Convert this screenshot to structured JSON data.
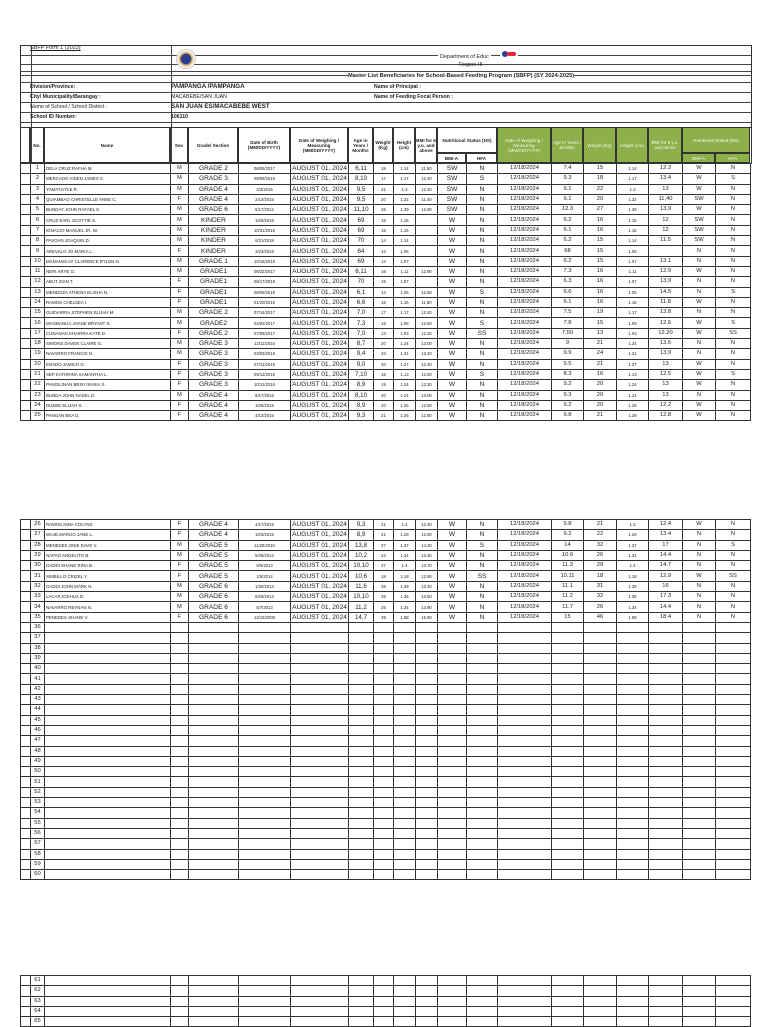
{
  "form_label": "SBFP Form 1 (2023)",
  "department": "Department of Educ",
  "region": "Region III",
  "title": "Master List Beneficiaries for School-Based Feeding Program (SBFP) (SY 2024-2025)",
  "info": {
    "division_label": "Division/Province:",
    "division_value": "PAMPANGA /PAMPANGA",
    "city_label": "City/ Municipality/Barangay :",
    "city_value": "MACABEBE/SAN JUAN",
    "school_label": "Name of School / School District :",
    "school_value": "SAN JUAN ES/MACABEBE WEST",
    "id_label": "School  ID Number:",
    "id_value": "106110",
    "principal_label": "Name of Principal :",
    "focal_label": "Name of Feeding Focal Person :"
  },
  "columns": {
    "no": "No.",
    "name": "Name",
    "sex": "Sex",
    "grade": "Grade/ Section",
    "dob": "Date of Birth (MM/DD/YYYY)",
    "weigh_date": "Date of Weighing / Measuring (MM/DD/YYYY)",
    "age": "Age in Years / Months",
    "weight": "Weight (Kg)",
    "height": "Height (cm)",
    "bmi": "BMI for 6 y.o. and above",
    "ns": "Nutritional Status (NS)",
    "bmia": "BMI-A",
    "hfa": "HFA",
    "g_date": "Date of Weighing / Measuring (MM/DD/YYYY)",
    "g_age": "Age in Years / Months",
    "g_weight": "Weight (Kg)",
    "g_height": "Height (cm)",
    "g_bmi": "BMI for 6 y.o. and above",
    "g_ns": "Nutritional Status (NS)",
    "g_bmia": "BMI-A",
    "g_hfa": "HFA"
  },
  "colors": {
    "accent_green": "#8db04a",
    "grid": "#333333"
  },
  "icons": {
    "deped_seal": "deped-seal-icon",
    "program_logo": "sbfp-logo-icon"
  },
  "rows": [
    [
      "1",
      "DELA CRUZ RAFHA M.",
      "M",
      "GRADE 2",
      "08/05/2017",
      "AUGUST 01, 2024",
      "6,11",
      "15",
      "1.14",
      "11.50",
      "SW",
      "N",
      "12/18/2024",
      "7.4",
      "15",
      "1.14",
      "12.3",
      "W",
      "N"
    ],
    [
      "2",
      "MERCADO AIDEN JAMES  S.",
      "M",
      "GRADE 3",
      "09/09/2015",
      "AUGUST 01, 2024",
      "8,10",
      "17",
      "1.17",
      "12.40",
      "SW",
      "S",
      "12/18/2024",
      "9.3",
      "18",
      "1.17",
      "13.4",
      "W",
      "S"
    ],
    [
      "3",
      "YAMAT,KYLE R.",
      "M",
      "GRADE 4",
      "2/3/2015",
      "AUGUST 01, 2024",
      "9,5",
      "21",
      "1.3",
      "12.40",
      "SW",
      "N",
      "12/18/2024",
      "9.1",
      "22",
      "1.3",
      "13",
      "W",
      "N"
    ],
    [
      "4",
      "QUIAMBAO  CHRISTELLE ANNE C.",
      "F",
      "GRADE 4",
      "2/10/2015",
      "AUGUST 01, 2024",
      "9,5",
      "20",
      "1.32",
      "11.40",
      "SW",
      "N",
      "12/18/2024",
      "9.1",
      "20",
      "1.32",
      "11,40",
      "SW",
      "N"
    ],
    [
      "5",
      "BUNDAY JOHN RAFAEL S.",
      "M",
      "GRADE 6",
      "6/17/2012",
      "AUGUST 01, 2024",
      "11,10",
      "25",
      "1.39",
      "12.90",
      "SW",
      "N",
      "12/18/2024",
      "12.3",
      "27",
      "1.39",
      "13.9",
      "W",
      "N"
    ],
    [
      "6",
      "CRUZ EARL SCOTTIE S.",
      "M",
      "KINDER",
      "10/6/2018",
      "AUGUST 01, 2024",
      "69",
      "15",
      "1.15",
      "",
      "W",
      "N",
      "12/18/2024",
      "6.2",
      "16",
      "1.15",
      "12",
      "SW",
      "N"
    ],
    [
      "7",
      "IGNACIO MANUEL JR. W.",
      "M",
      "KINDER",
      "10/31/2018",
      "AUGUST 01, 2024",
      "69",
      "15",
      "1.15",
      "",
      "W",
      "N",
      "12/18/2024",
      "6.1",
      "16",
      "1.15",
      "12",
      "SW",
      "N"
    ],
    [
      "8",
      "PAVOAN JOAQUIN D.",
      "M",
      "KINDER",
      "6/21/2018",
      "AUGUST 01, 2024",
      "70",
      "14",
      "1.14",
      "",
      "W",
      "N",
      "12/18/2024",
      "6.2",
      "15",
      "1.14",
      "11.5",
      "SW",
      "N"
    ],
    [
      "9",
      "AREVALO JO MARIA  L.",
      "F",
      "KINDER",
      "3/23/2019",
      "AUGUST 01, 2024",
      "64",
      "14",
      "1.06",
      "",
      "W",
      "N",
      "12/18/2024",
      "68",
      "15",
      "1.06",
      "",
      "N",
      "N"
    ],
    [
      "10",
      "MANANSCAY CLARENCE RYLEN N.",
      "M",
      "GRADE 1",
      "10/16/2018",
      "AUGUST 01, 2024",
      "69",
      "14",
      "1.07",
      "",
      "W",
      "N",
      "12/18/2024",
      "6.2",
      "15",
      "1.07",
      "13.1",
      "N",
      "N"
    ],
    [
      "11",
      "NERI ARYE O.",
      "M",
      "GRADE1",
      "08/22/2017",
      "AUGUST 01, 2024",
      "6,11",
      "16",
      "1.11",
      "12.90",
      "W",
      "N",
      "12/18/2024",
      "7.3",
      "16",
      "1.11",
      "12.9",
      "W",
      "N"
    ],
    [
      "12",
      "ABUT ZIAN T.",
      "F",
      "GRADE1",
      "09/17/2018",
      "AUGUST 01, 2024",
      "70",
      "15",
      "1.07",
      "",
      "W",
      "N",
      "12/18/2024",
      "6.3",
      "16",
      "1.07",
      "13.9",
      "N",
      "N"
    ],
    [
      "13",
      "MENDOZA ATHENA ELISHA N.",
      "F",
      "GRADE1",
      "06/09/2018",
      "AUGUST 01, 2024",
      "6,1",
      "14",
      "1.05",
      "12.60",
      "W",
      "S",
      "12/18/2024",
      "6.6",
      "16",
      "1.05",
      "14.5",
      "N",
      "S"
    ],
    [
      "14",
      "RAMOS CHELSEA I.",
      "F",
      "GRADE1",
      "01/20/2018",
      "AUGUST 01, 2024",
      "6,6",
      "16",
      "1.16",
      "11.80",
      "W",
      "N",
      "12/18/2024",
      "6.1",
      "16",
      "1.16",
      "11.8",
      "W",
      "N"
    ],
    [
      "15",
      "GUEVARRA,STEPHEN ELIJAH  M.",
      "M",
      "GRADE 2",
      "07/14/2017",
      "AUGUST 01, 2024",
      "7,0",
      "17",
      "1.17",
      "12.40",
      "W",
      "N",
      "12/18/2024",
      "7.5",
      "19",
      "1.17",
      "13.8",
      "N",
      "N"
    ],
    [
      "16",
      "MAGBANUA,JHANE BRYANT S.",
      "M",
      "GRADE2",
      "04/02/2017",
      "AUGUST 01, 2024",
      "7,3",
      "15",
      "1.09",
      "12.60",
      "W",
      "S",
      "12/18/2024",
      "7.8",
      "15",
      "1.09",
      "12.6",
      "W",
      "S"
    ],
    [
      "17",
      "CUNANAN SHAIRRA KATE D.",
      "F",
      "GRADE 2",
      "07/09/2017",
      "AUGUST 01, 2024",
      "7,0",
      "13",
      "1.03",
      "12.20",
      "W",
      "SS",
      "12/18/2024",
      "7.50",
      "13",
      "1.03",
      "12.20",
      "W",
      "SS"
    ],
    [
      "18",
      "SIMONS DAVEN CLAIRE G.",
      "M",
      "GRADE 3",
      "12/11/2015",
      "AUGUST 01, 2024",
      "8,7",
      "20",
      "1.24",
      "13.00",
      "W",
      "N",
      "12/18/2024",
      "9",
      "21",
      "1.24",
      "13.6",
      "N",
      "N"
    ],
    [
      "19",
      "NAVARRO FRANCIS N.",
      "M",
      "GRADE 3",
      "03/03/2015",
      "AUGUST 01, 2024",
      "9,4",
      "23",
      "1.31",
      "13.40",
      "W",
      "N",
      "12/18/2024",
      "9.9",
      "24",
      "1.31",
      "13.9",
      "N",
      "N"
    ],
    [
      "20",
      "ENADO JAMICH G.",
      "F",
      "GRADE 3",
      "07/12/2015",
      "AUGUST 01, 2024",
      "9,0",
      "20",
      "1.27",
      "12.40",
      "W",
      "N",
      "12/18/2024",
      "9.5",
      "21",
      "1.27",
      "13",
      "W",
      "N"
    ],
    [
      "21",
      "SEP KATHRINA SAMANTHA L.",
      "F",
      "GRADE 3",
      "09/13/2016",
      "AUGUST 01, 2024",
      "7,10",
      "16",
      "1.13",
      "12.50",
      "W",
      "S",
      "12/18/2024",
      "8.3",
      "16",
      "1.13",
      "12.5",
      "W",
      "S"
    ],
    [
      "22",
      "PANGILINAN BRIXI ISHIKA S.",
      "F",
      "GRADE 3",
      "10/12/2015",
      "AUGUST 01, 2024",
      "8,9",
      "19",
      "1.24",
      "12.30",
      "W",
      "N",
      "12/18/2024",
      "9.2",
      "20",
      "1.24",
      "13",
      "W",
      "N"
    ],
    [
      "23",
      "BUNDA JOHN NASEL D.",
      "M",
      "GRADE 4",
      "8/17/2015",
      "AUGUST 01, 2024",
      "8,10",
      "20",
      "1.24",
      "13.00",
      "W",
      "N",
      "12/18/2024",
      "9.3",
      "20",
      "1.24",
      "13",
      "N",
      "N"
    ],
    [
      "24",
      "DUEBE ELIJAH S.",
      "F",
      "GRADE 4",
      "10/5/2015",
      "AUGUST 01, 2024",
      "8,9",
      "20",
      "1.26",
      "12.50",
      "W",
      "N",
      "12/18/2024",
      "9.2",
      "20",
      "1.26",
      "12.2",
      "W",
      "N"
    ],
    [
      "25",
      "PANGAN BEA D.",
      "F",
      "GRADE 4",
      "4/13/2015",
      "AUGUST 01, 2024",
      "9,3",
      "21",
      "1.26",
      "12.80",
      "W",
      "N",
      "12/18/2024",
      "9.8",
      "21",
      "1.28",
      "12.8",
      "W",
      "N"
    ],
    [
      "26",
      "RAMOS,NINA COLYNS",
      "F",
      "GRADE 4",
      "4/17/2015",
      "AUGUST 01, 2024",
      "9,3",
      "21",
      "1.3",
      "12.40",
      "W",
      "N",
      "12/18/2024",
      "9.8",
      "21",
      "1.3",
      "12.4",
      "W",
      "N"
    ],
    [
      "27",
      "WAJE,MARGO JANE L.",
      "F",
      "GRADE 4",
      "10/3/2015",
      "AUGUST 01, 2024",
      "8,9",
      "21",
      "1.28",
      "12.80",
      "W",
      "N",
      "12/18/2024",
      "9.2",
      "22",
      "1.28",
      "13.4",
      "N",
      "N"
    ],
    [
      "28",
      "MENESES,ONIE DAVE V.",
      "M",
      "GRADE 5",
      "11/28/2010",
      "AUGUST 01, 2024",
      "13,8",
      "27",
      "1.37",
      "14.30",
      "W",
      "S",
      "12/18/2024",
      "14",
      "32",
      "1.37",
      "17",
      "N",
      "S"
    ],
    [
      "29",
      "NAPAO ANGELITO B.",
      "M",
      "GRADE 5",
      "5/28/2014",
      "AUGUST 01, 2024",
      "10,2",
      "24",
      "1.34",
      "13.30",
      "W",
      "N",
      "12/18/2024",
      "10.6",
      "26",
      "1.34",
      "14.4",
      "N",
      "N"
    ],
    [
      "30",
      "GADDI SHANE RINA B.",
      "F",
      "GRADE 5",
      "9/5/2013",
      "AUGUST 01, 2024",
      "10,10",
      "27",
      "1.4",
      "13.70",
      "W",
      "N",
      "12/18/2024",
      "11.3",
      "29",
      "1.4",
      "14.7",
      "N",
      "N"
    ],
    [
      "31",
      "SIMBILLO CRIZEL Y.",
      "F",
      "GRADE 5",
      "1/5/2014",
      "AUGUST 01, 2024",
      "10,6",
      "18",
      "1.18",
      "12.90",
      "W",
      "SS",
      "12/18/2024",
      "10.11",
      "18",
      "1.18",
      "12.9",
      "W",
      "SS"
    ],
    [
      "32",
      "GADDI JOHN MARK N.",
      "M",
      "GRADE 6",
      "1/30/2013",
      "AUGUST 01, 2024",
      "11,6",
      "26",
      "1.39",
      "13.40",
      "W",
      "N",
      "12/18/2024",
      "11.1",
      "31",
      "1.39",
      "16",
      "N",
      "N"
    ],
    [
      "33",
      "LACAP,JOSHUA D.",
      "M",
      "GRADE 6",
      "8/29/2013",
      "AUGUST 01, 2024",
      "10,10",
      "25",
      "1.36",
      "13.50",
      "W",
      "N",
      "12/18/2024",
      "11.2",
      "32",
      "1.36",
      "17.3",
      "N",
      "N"
    ],
    [
      "34",
      "NAVARRO REYNAN N.",
      "M",
      "GRADE 6",
      "5/7/2013",
      "AUGUST 01, 2024",
      "11,2",
      "25",
      "1.34",
      "13.90",
      "W",
      "N",
      "12/18/2024",
      "11.7",
      "26",
      "1.34",
      "14.4",
      "N",
      "N"
    ],
    [
      "35",
      "PENEDES SHANE V.",
      "F",
      "GRADE 6",
      "12/15/2009",
      "AUGUST 01, 2024",
      "14,7",
      "39",
      "1.58",
      "15.60",
      "W",
      "N",
      "12/18/2024",
      "15",
      "46",
      "1.58",
      "18.4",
      "N",
      "N"
    ]
  ],
  "empty_row_numbers": [
    "36",
    "37",
    "38",
    "39",
    "40",
    "41",
    "42",
    "43",
    "44",
    "45",
    "46",
    "47",
    "48",
    "49",
    "50",
    "51",
    "52",
    "53",
    "54",
    "55",
    "56",
    "57",
    "58",
    "59",
    "60",
    "61",
    "62",
    "63",
    "64",
    "65"
  ]
}
